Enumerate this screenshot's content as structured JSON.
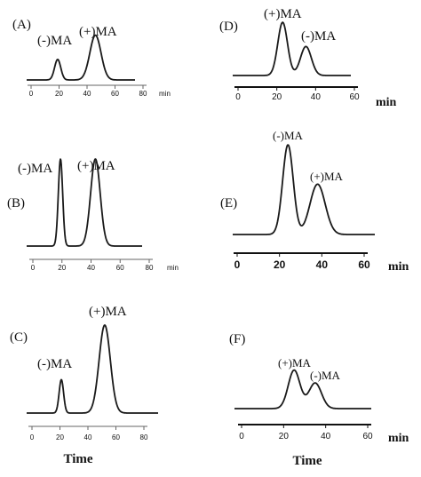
{
  "chart_data": [
    {
      "type": "line",
      "panel_label": "(A)",
      "x_unit": "min",
      "xticks": [
        "0",
        "20",
        "40",
        "60",
        "80"
      ],
      "xlim": [
        0,
        80
      ],
      "x_label": "",
      "peaks": [
        {
          "label": "(-)MA",
          "retention_min": 19,
          "height": 0.33,
          "width_min": 2.2
        },
        {
          "label": "(+)MA",
          "retention_min": 46,
          "height": 0.72,
          "width_min": 4.0
        }
      ]
    },
    {
      "type": "line",
      "panel_label": "(B)",
      "x_unit": "min",
      "xticks": [
        "0",
        "20",
        "40",
        "60",
        "80"
      ],
      "xlim": [
        0,
        80
      ],
      "x_label": "",
      "peaks": [
        {
          "label": "(-)MA",
          "retention_min": 19,
          "height": 0.98,
          "width_min": 1.5
        },
        {
          "label": "(+)MA",
          "retention_min": 43,
          "height": 0.98,
          "width_min": 3.3
        }
      ]
    },
    {
      "type": "line",
      "panel_label": "(C)",
      "x_unit": "",
      "xticks": [
        "0",
        "20",
        "40",
        "60",
        "80"
      ],
      "xlim": [
        0,
        80
      ],
      "x_label": "Time",
      "peaks": [
        {
          "label": "(-)MA",
          "retention_min": 21,
          "height": 0.38,
          "width_min": 1.6
        },
        {
          "label": "(+)MA",
          "retention_min": 52,
          "height": 1.0,
          "width_min": 4.0
        }
      ]
    },
    {
      "type": "line",
      "panel_label": "(D)",
      "x_unit": "min",
      "xticks": [
        "0",
        "20",
        "40",
        "60"
      ],
      "xlim": [
        0,
        60
      ],
      "x_label": "",
      "peaks": [
        {
          "label": "(+)MA",
          "retention_min": 23,
          "height": 0.88,
          "width_min": 2.5
        },
        {
          "label": "(-)MA",
          "retention_min": 35,
          "height": 0.48,
          "width_min": 2.8
        }
      ]
    },
    {
      "type": "line",
      "panel_label": "(E)",
      "x_unit": "min",
      "xticks": [
        "0",
        "20",
        "40",
        "60"
      ],
      "xlim": [
        0,
        60
      ],
      "x_label": "",
      "peaks": [
        {
          "label": "(-)MA",
          "retention_min": 24,
          "height": 0.98,
          "width_min": 2.5
        },
        {
          "label": "(+)MA",
          "retention_min": 38,
          "height": 0.55,
          "width_min": 3.6
        }
      ]
    },
    {
      "type": "line",
      "panel_label": "(F)",
      "x_unit": "min",
      "xticks": [
        "0",
        "20",
        "40",
        "60"
      ],
      "xlim": [
        0,
        60
      ],
      "x_label": "Time",
      "peaks": [
        {
          "label": "(+)MA",
          "retention_min": 25,
          "height": 0.42,
          "width_min": 2.8
        },
        {
          "label": "(-)MA",
          "retention_min": 35,
          "height": 0.28,
          "width_min": 3.0
        }
      ]
    }
  ]
}
